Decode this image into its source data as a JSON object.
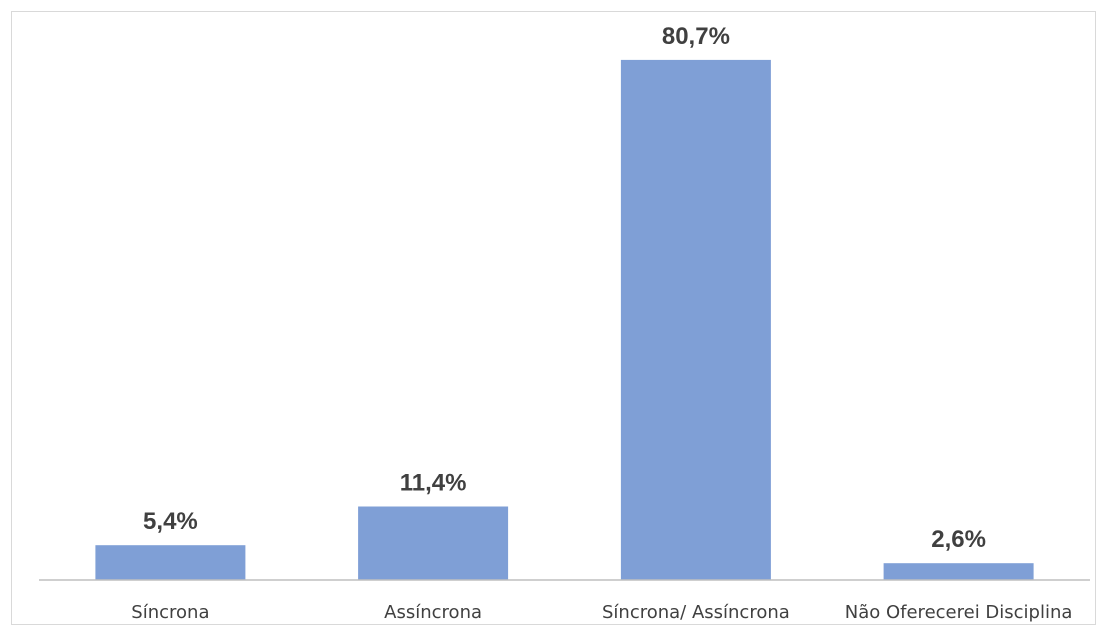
{
  "chart_data": {
    "type": "bar",
    "categories": [
      "Síncrona",
      "Assíncrona",
      "Síncrona/ Assíncrona",
      "Não Oferecerei Disciplina"
    ],
    "values": [
      5.4,
      11.4,
      80.7,
      2.6
    ],
    "data_labels": [
      "5,4%",
      "11,4%",
      "80,7%",
      "2,6%"
    ],
    "title": "",
    "xlabel": "",
    "ylabel": "",
    "ylim": [
      0,
      90
    ],
    "grid": false,
    "legend": "none",
    "bar_color": "#7f9fd6",
    "axis_color": "#bfbfbf",
    "text_color": "#404040"
  }
}
